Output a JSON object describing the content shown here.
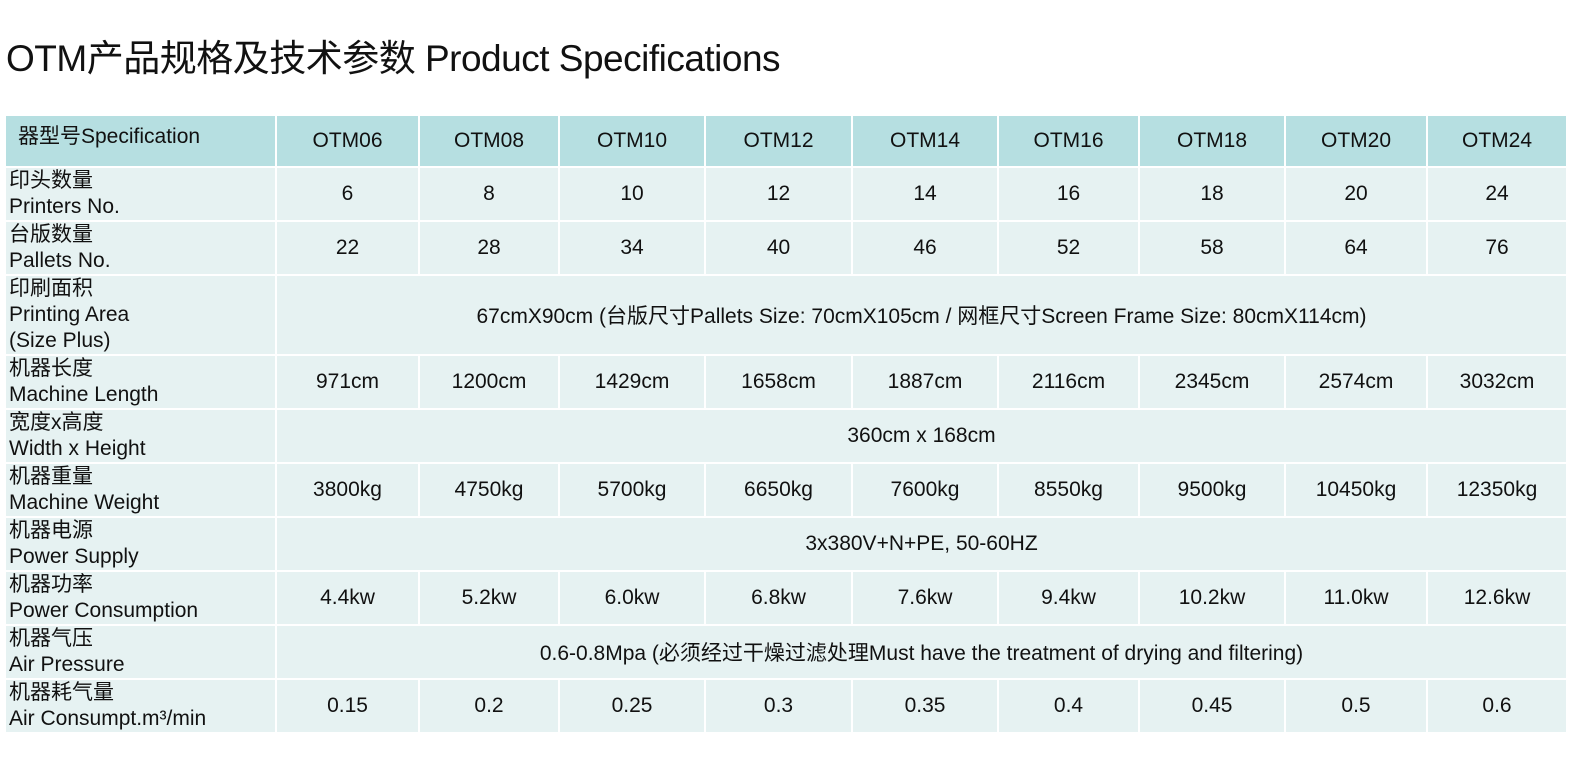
{
  "header": {
    "title": "OTM产品规格及技术参数 Product Specifications"
  },
  "table": {
    "columns": [
      "器型号Specification",
      "OTM06",
      "OTM08",
      "OTM10",
      "OTM12",
      "OTM14",
      "OTM16",
      "OTM18",
      "OTM20",
      "OTM24"
    ],
    "rows": [
      {
        "label": [
          "印头数量",
          "Printers No."
        ],
        "cells": [
          "6",
          "8",
          "10",
          "12",
          "14",
          "16",
          "18",
          "20",
          "24"
        ]
      },
      {
        "label": [
          "台版数量",
          "Pallets No."
        ],
        "cells": [
          "22",
          "28",
          "34",
          "40",
          "46",
          "52",
          "58",
          "64",
          "76"
        ]
      },
      {
        "label": [
          "印刷面积",
          "Printing Area",
          "(Size Plus)"
        ],
        "span": "67cmX90cm (台版尺寸Pallets Size: 70cmX105cm / 网框尺寸Screen Frame Size: 80cmX114cm)"
      },
      {
        "label": [
          "机器长度",
          "Machine Length"
        ],
        "cells": [
          "971cm",
          "1200cm",
          "1429cm",
          "1658cm",
          "1887cm",
          "2116cm",
          "2345cm",
          "2574cm",
          "3032cm"
        ]
      },
      {
        "label": [
          "宽度x高度",
          "Width x Height"
        ],
        "span": "360cm x 168cm"
      },
      {
        "label": [
          "机器重量",
          "Machine Weight"
        ],
        "cells": [
          "3800kg",
          "4750kg",
          "5700kg",
          "6650kg",
          "7600kg",
          "8550kg",
          "9500kg",
          "10450kg",
          "12350kg"
        ]
      },
      {
        "label": [
          "机器电源",
          "Power Supply"
        ],
        "span": "3x380V+N+PE, 50-60HZ"
      },
      {
        "label": [
          "机器功率",
          "Power Consumption"
        ],
        "cells": [
          "4.4kw",
          "5.2kw",
          "6.0kw",
          "6.8kw",
          "7.6kw",
          "9.4kw",
          "10.2kw",
          "11.0kw",
          "12.6kw"
        ]
      },
      {
        "label": [
          "机器气压",
          "Air Pressure"
        ],
        "span": "0.6-0.8Mpa (必须经过干燥过滤处理Must have the treatment of drying and filtering)"
      },
      {
        "label": [
          "机器耗气量",
          "Air Consumpt.m³/min"
        ],
        "cells": [
          "0.15",
          "0.2",
          "0.25",
          "0.3",
          "0.35",
          "0.4",
          "0.45",
          "0.5",
          "0.6"
        ]
      }
    ]
  }
}
